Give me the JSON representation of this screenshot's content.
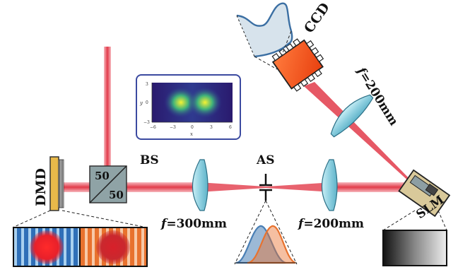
{
  "labels": {
    "dmd": "DMD",
    "bs": "BS",
    "bs_top": "50",
    "bs_bottom": "50",
    "as": "AS",
    "slm": "SLM",
    "ccd": "CCD",
    "lens1": {
      "f": "f",
      "rest": "=300mm"
    },
    "lens2": {
      "f": "f",
      "rest": "=200mm"
    },
    "lens3": {
      "f": "f",
      "rest": "=200mm"
    }
  },
  "inset_plot": {
    "x_axis_label": "x",
    "y_axis_label": "y",
    "x_ticks": [
      "−6",
      "−3",
      "0",
      "3",
      "6"
    ],
    "y_ticks": [
      "3",
      "0",
      "−3"
    ]
  },
  "colors": {
    "beam": "#e23b4a",
    "lens": "#9fd9e6",
    "lens_stroke": "#2b6f86",
    "inset_border": "#3b4aa0",
    "ccd": "#ff5a1f",
    "slm_body": "#d9c99a",
    "dmd_body": "#e8b94a",
    "profile_blue": "#4a7fb5",
    "profile_orange": "#e8722e"
  }
}
